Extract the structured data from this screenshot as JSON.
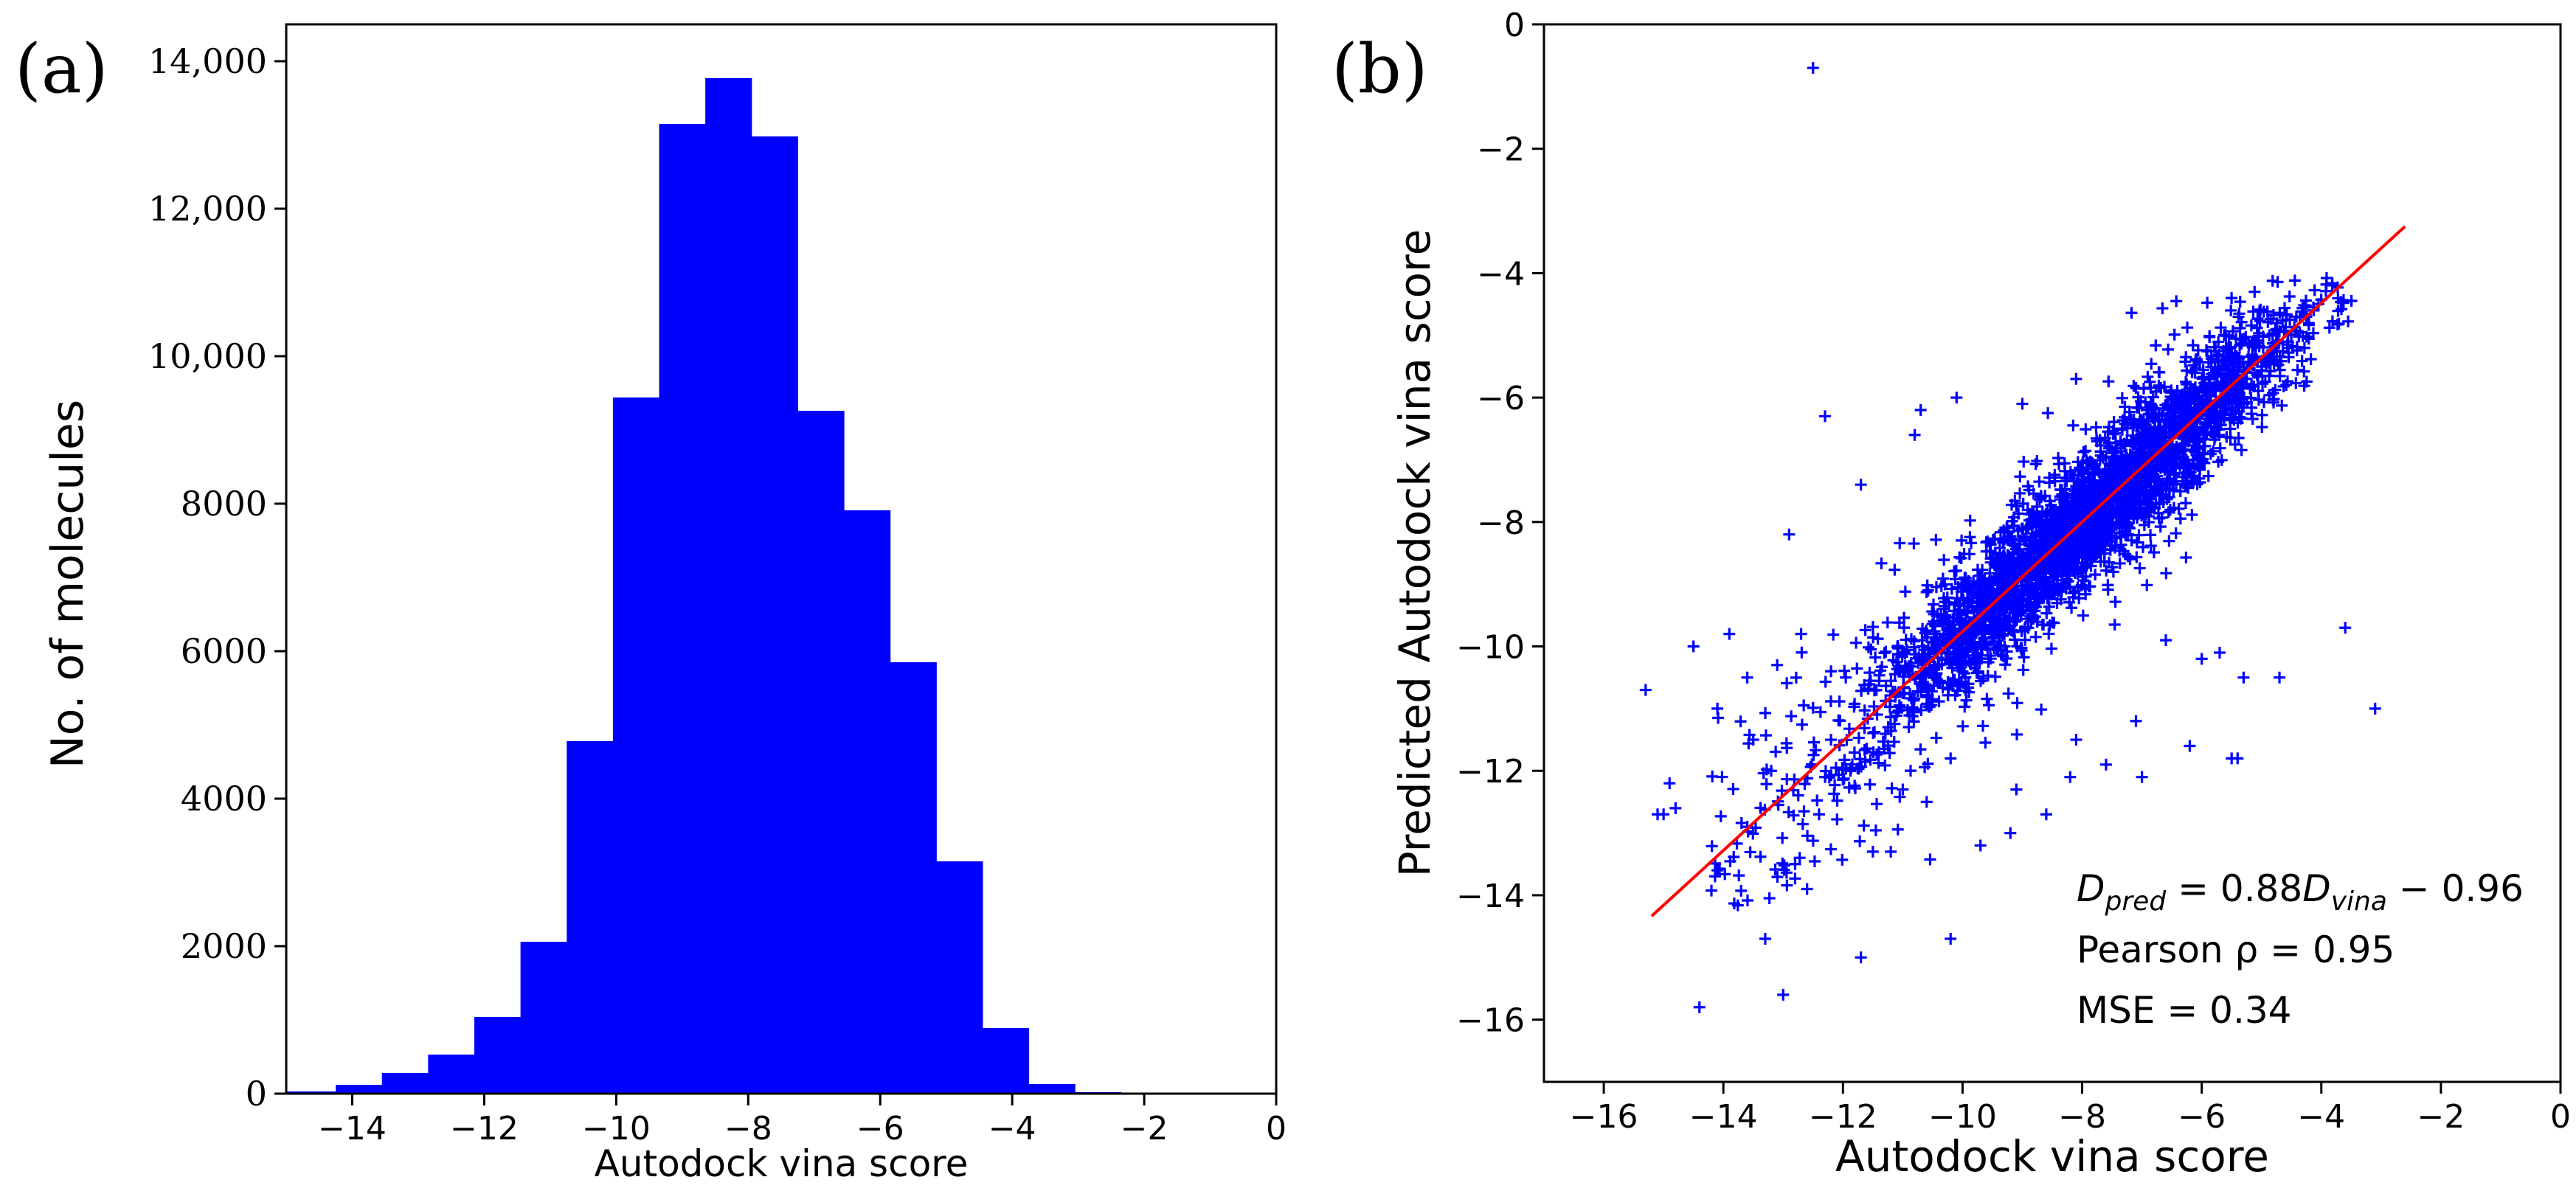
{
  "figure": {
    "colors": {
      "bar": "#0000ff",
      "marker": "#0000ff",
      "fit_line": "#ff0000",
      "axis": "#000000"
    }
  },
  "chart_data": [
    {
      "panel_label": "(a)",
      "type": "bar",
      "subtype": "histogram",
      "title": "",
      "xlabel": "Autodock vina score",
      "ylabel": "No. of molecules",
      "xlim": [
        -15,
        0
      ],
      "ylim": [
        0,
        14500
      ],
      "xticks": [
        -14,
        -12,
        -10,
        -8,
        -6,
        -4,
        -2,
        0
      ],
      "xtick_labels": [
        "−14",
        "−12",
        "−10",
        "−8",
        "−6",
        "−4",
        "−2",
        "0"
      ],
      "yticks": [
        0,
        2000,
        4000,
        6000,
        8000,
        10000,
        12000,
        14000
      ],
      "ytick_labels": [
        "0",
        "2000",
        "4000",
        "6000",
        "8000",
        "10,000",
        "12,000",
        "14,000"
      ],
      "bin_edges": [
        -15.0,
        -14.25,
        -13.55,
        -12.85,
        -12.15,
        -11.45,
        -10.75,
        -10.05,
        -9.35,
        -8.65,
        -7.95,
        -7.25,
        -6.55,
        -5.85,
        -5.15,
        -4.45,
        -3.75,
        -3.05,
        -2.35
      ],
      "values": [
        30,
        120,
        280,
        530,
        1040,
        2060,
        4780,
        9440,
        13150,
        13770,
        12980,
        9260,
        7910,
        5850,
        3150,
        890,
        130,
        20
      ]
    },
    {
      "panel_label": "(b)",
      "type": "scatter",
      "title": "",
      "xlabel": "Autodock vina score",
      "ylabel": "Predicted Autodock vina score",
      "xlim": [
        -17,
        0
      ],
      "ylim": [
        -17,
        0
      ],
      "xticks": [
        -16,
        -14,
        -12,
        -10,
        -8,
        -6,
        -4,
        -2,
        0
      ],
      "xtick_labels": [
        "−16",
        "−14",
        "−12",
        "−10",
        "−8",
        "−6",
        "−4",
        "−2",
        "0"
      ],
      "yticks": [
        0,
        -2,
        -4,
        -6,
        -8,
        -10,
        -12,
        -14,
        -16
      ],
      "ytick_labels": [
        "0",
        "−2",
        "−4",
        "−6",
        "−8",
        "−10",
        "−12",
        "−14",
        "−16"
      ],
      "marker": "+",
      "fit_line": {
        "slope": 0.88,
        "intercept": -0.96,
        "x_range": [
          -15.2,
          -2.6
        ]
      },
      "annotations": {
        "equation": {
          "lhs": "D",
          "lhs_sub": "pred",
          "mid": " = 0.88",
          "rhs": "D",
          "rhs_sub": "vina",
          "tail": " − 0.96"
        },
        "pearson": "Pearson ρ = 0.95",
        "mse": "MSE = 0.34"
      },
      "points": [
        [
          -12.5,
          -0.7
        ],
        [
          -15.3,
          -10.7
        ],
        [
          -14.5,
          -10.0
        ],
        [
          -13.9,
          -9.8
        ],
        [
          -12.3,
          -6.3
        ],
        [
          -12.9,
          -8.2
        ],
        [
          -11.7,
          -7.4
        ],
        [
          -10.7,
          -6.2
        ],
        [
          -10.8,
          -6.6
        ],
        [
          -10.1,
          -6.0
        ],
        [
          -9.0,
          -6.1
        ],
        [
          -8.1,
          -5.7
        ],
        [
          -5.9,
          -5.9
        ],
        [
          -6.6,
          -9.9
        ],
        [
          -6.0,
          -10.2
        ],
        [
          -5.7,
          -10.1
        ],
        [
          -4.7,
          -10.5
        ],
        [
          -3.6,
          -9.7
        ],
        [
          -3.1,
          -11.0
        ],
        [
          -5.4,
          -11.8
        ],
        [
          -14.4,
          -15.8
        ],
        [
          -13.0,
          -15.6
        ],
        [
          -11.7,
          -15.0
        ],
        [
          -10.2,
          -14.7
        ],
        [
          -13.3,
          -14.7
        ],
        [
          -15.0,
          -12.7
        ],
        [
          -14.8,
          -12.6
        ],
        [
          -15.1,
          -12.7
        ],
        [
          -14.1,
          -13.6
        ],
        [
          -12.6,
          -13.9
        ],
        [
          -12.8,
          -13.5
        ],
        [
          -11.5,
          -13.3
        ],
        [
          -11.2,
          -13.3
        ],
        [
          -10.6,
          -12.5
        ],
        [
          -9.7,
          -13.2
        ],
        [
          -9.2,
          -13.0
        ],
        [
          -8.6,
          -12.7
        ],
        [
          -8.2,
          -12.1
        ],
        [
          -9.1,
          -12.3
        ],
        [
          -8.1,
          -11.5
        ],
        [
          -7.6,
          -11.9
        ],
        [
          -7.1,
          -11.2
        ],
        [
          -7.0,
          -12.1
        ],
        [
          -5.5,
          -11.8
        ],
        [
          -5.3,
          -10.5
        ],
        [
          -6.2,
          -11.6
        ],
        [
          -13.5,
          -11.5
        ],
        [
          -14.1,
          -11.0
        ],
        [
          -13.6,
          -10.5
        ],
        [
          -13.1,
          -10.3
        ],
        [
          -12.7,
          -9.8
        ],
        [
          -12.2,
          -10.4
        ],
        [
          -14.9,
          -12.2
        ],
        [
          -12.2,
          -11.5
        ],
        [
          -13.2,
          -12.0
        ],
        [
          -11.4,
          -11.7
        ],
        [
          -11.0,
          -12.3
        ],
        [
          -12.4,
          -12.7
        ],
        [
          -13.6,
          -12.9
        ],
        [
          -10.2,
          -11.8
        ]
      ],
      "cloud": {
        "count": 2800,
        "x_mean": -7.8,
        "x_sd": 1.75,
        "x_range": [
          -12.2,
          -3.4
        ],
        "residual_sd": 0.5,
        "wide_count": 380,
        "wide_x_range": [
          -14.2,
          -6.0
        ],
        "wide_residual_sd": 1.05,
        "y_range": [
          -14.2,
          -4.0
        ]
      }
    }
  ]
}
